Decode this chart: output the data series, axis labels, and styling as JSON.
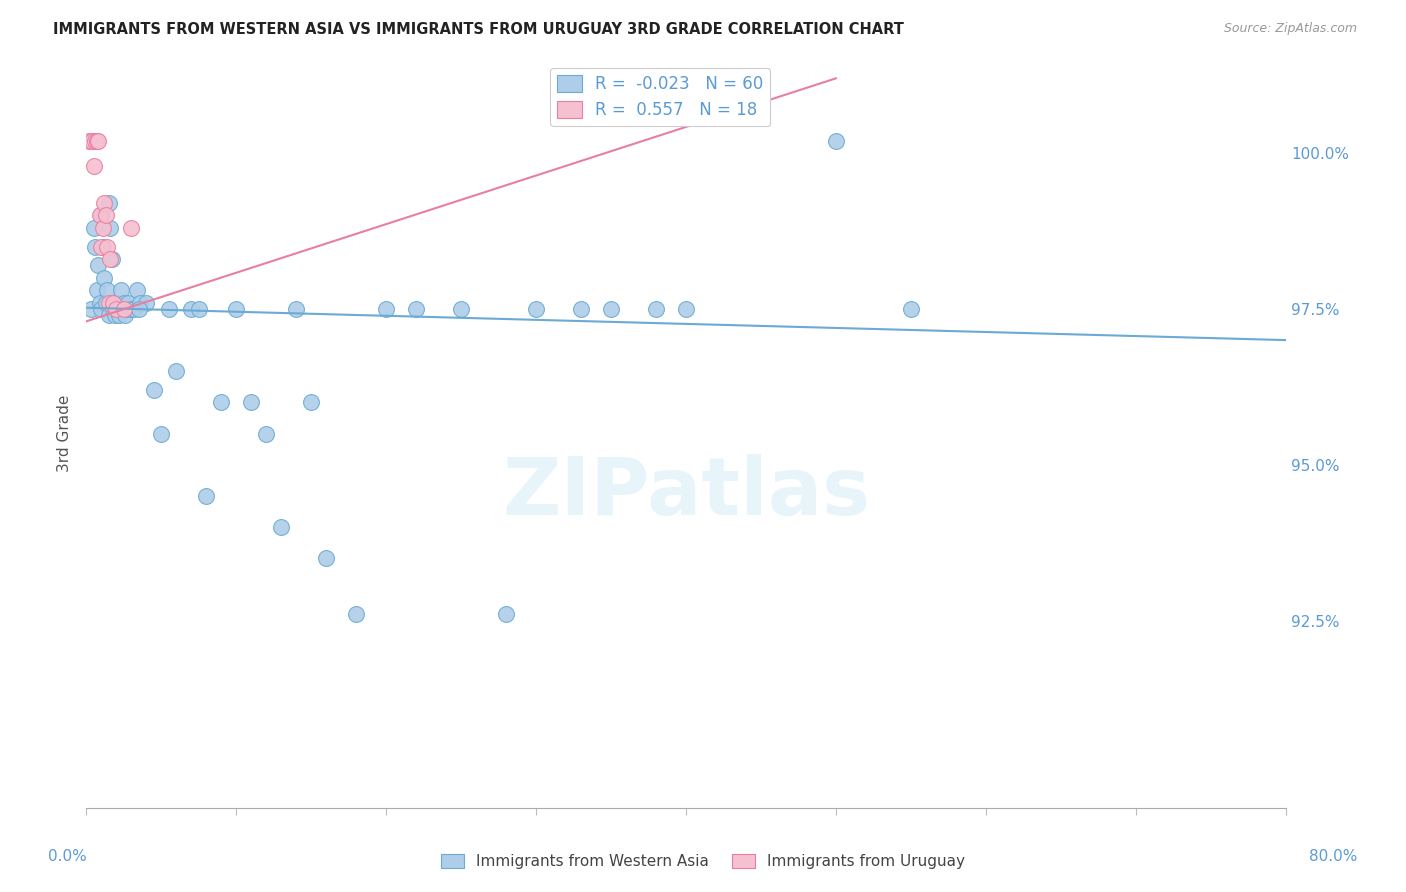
{
  "title": "IMMIGRANTS FROM WESTERN ASIA VS IMMIGRANTS FROM URUGUAY 3RD GRADE CORRELATION CHART",
  "source": "Source: ZipAtlas.com",
  "ylabel": "3rd Grade",
  "ylabel_right_ticks": [
    100.0,
    97.5,
    95.0,
    92.5
  ],
  "ylabel_right_labels": [
    "100.0%",
    "97.5%",
    "95.0%",
    "92.5%"
  ],
  "xmin": 0.0,
  "xmax": 80.0,
  "ymin": 89.5,
  "ymax": 101.5,
  "blue_R": -0.023,
  "blue_N": 60,
  "pink_R": 0.557,
  "pink_N": 18,
  "blue_color": "#aecde8",
  "blue_edge_color": "#6aaad4",
  "pink_color": "#f5c0d0",
  "pink_edge_color": "#e87fa0",
  "legend_label_blue": "Immigrants from Western Asia",
  "legend_label_pink": "Immigrants from Uruguay",
  "watermark": "ZIPatlas",
  "blue_points_x": [
    0.3,
    0.5,
    0.6,
    0.7,
    0.8,
    0.9,
    1.0,
    1.0,
    1.1,
    1.2,
    1.3,
    1.4,
    1.5,
    1.5,
    1.6,
    1.7,
    1.8,
    1.9,
    2.0,
    2.1,
    2.2,
    2.3,
    2.4,
    2.5,
    2.6,
    2.7,
    2.8,
    3.0,
    3.2,
    3.4,
    3.6,
    4.0,
    4.5,
    5.0,
    6.0,
    7.0,
    8.0,
    9.0,
    10.0,
    11.0,
    12.0,
    13.0,
    14.0,
    15.0,
    16.0,
    18.0,
    20.0,
    22.0,
    25.0,
    28.0,
    30.0,
    33.0,
    35.0,
    38.0,
    40.0,
    50.0,
    3.5,
    5.5,
    7.5,
    55.0
  ],
  "blue_points_y": [
    97.5,
    98.8,
    98.5,
    97.8,
    98.2,
    97.6,
    99.0,
    97.5,
    98.5,
    98.0,
    97.6,
    97.8,
    99.2,
    97.4,
    98.8,
    98.3,
    97.5,
    97.4,
    97.6,
    97.5,
    97.4,
    97.8,
    97.5,
    97.6,
    97.4,
    97.5,
    97.6,
    97.5,
    97.5,
    97.8,
    97.6,
    97.6,
    96.2,
    95.5,
    96.5,
    97.5,
    94.5,
    96.0,
    97.5,
    96.0,
    95.5,
    94.0,
    97.5,
    96.0,
    93.5,
    92.6,
    97.5,
    97.5,
    97.5,
    92.6,
    97.5,
    97.5,
    97.5,
    97.5,
    97.5,
    100.2,
    97.5,
    97.5,
    97.5,
    97.5
  ],
  "pink_points_x": [
    0.2,
    0.4,
    0.5,
    0.6,
    0.7,
    0.8,
    0.9,
    1.0,
    1.1,
    1.2,
    1.3,
    1.4,
    1.5,
    1.6,
    1.8,
    2.0,
    2.5,
    3.0
  ],
  "pink_points_y": [
    100.2,
    100.2,
    99.8,
    100.2,
    100.2,
    100.2,
    99.0,
    98.5,
    98.8,
    99.2,
    99.0,
    98.5,
    97.6,
    98.3,
    97.6,
    97.5,
    97.5,
    98.8
  ],
  "blue_line_x0": 0.0,
  "blue_line_y0": 97.52,
  "blue_line_x1": 80.0,
  "blue_line_y1": 97.0,
  "pink_line_x0": 0.0,
  "pink_line_y0": 97.3,
  "pink_line_x1": 50.0,
  "pink_line_y1": 101.2
}
